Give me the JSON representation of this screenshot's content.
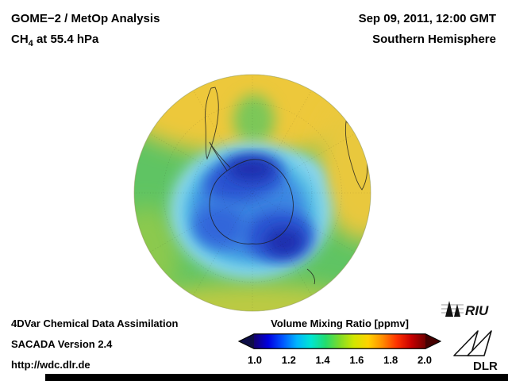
{
  "header": {
    "title": "GOME−2 / MetOp Analysis",
    "subtitle_prefix": "CH",
    "subtitle_sub": "4",
    "subtitle_suffix": " at 55.4 hPa",
    "datetime": "Sep 09, 2011, 12:00 GMT",
    "hemisphere": "Southern Hemisphere"
  },
  "footer": {
    "line1": "4DVar Chemical Data Assimilation",
    "line2": "SACADA Version 2.4",
    "url": "http://wdc.dlr.de"
  },
  "colorbar": {
    "title": "Volume Mixing Ratio [ppmv]",
    "ticks": [
      "1.0",
      "1.2",
      "1.4",
      "1.6",
      "1.8",
      "2.0"
    ],
    "min": "1.0",
    "max": "2.0",
    "colors": [
      "#14006e",
      "#0000e1",
      "#0055ff",
      "#00b4ff",
      "#00e6d2",
      "#23dc6e",
      "#7edc28",
      "#d2e600",
      "#ffd200",
      "#ff8c00",
      "#ff3200",
      "#c80000",
      "#700000"
    ],
    "left_arrow_color": "#0d0d46",
    "right_arrow_color": "#460000"
  },
  "logos": {
    "riu": "RIU",
    "dlr": "DLR"
  },
  "chart_data": {
    "type": "heatmap",
    "projection": "orthographic, South Pole centered (Southern Hemisphere)",
    "variable": "CH4 volume mixing ratio",
    "units": "ppmv",
    "scale_range": [
      1.0,
      2.0
    ],
    "scale_ticks": [
      1.0,
      1.2,
      1.4,
      1.6,
      1.8,
      2.0
    ],
    "features": [
      {
        "region": "Antarctic polar vortex core (over Antarctica)",
        "value_ppmv": "1.0–1.25",
        "color": "dark blue"
      },
      {
        "region": "vortex edge ring",
        "value_ppmv": "1.3–1.45",
        "color": "light blue / cyan"
      },
      {
        "region": "southern mid-latitudes",
        "value_ppmv": "1.45–1.6",
        "color": "green"
      },
      {
        "region": "subtropical outer rim (top of disk)",
        "value_ppmv": "1.6–1.75",
        "color": "yellow"
      }
    ],
    "visible_coastlines": [
      "southern South America",
      "Antarctica with peninsula",
      "coast near right limb"
    ]
  }
}
